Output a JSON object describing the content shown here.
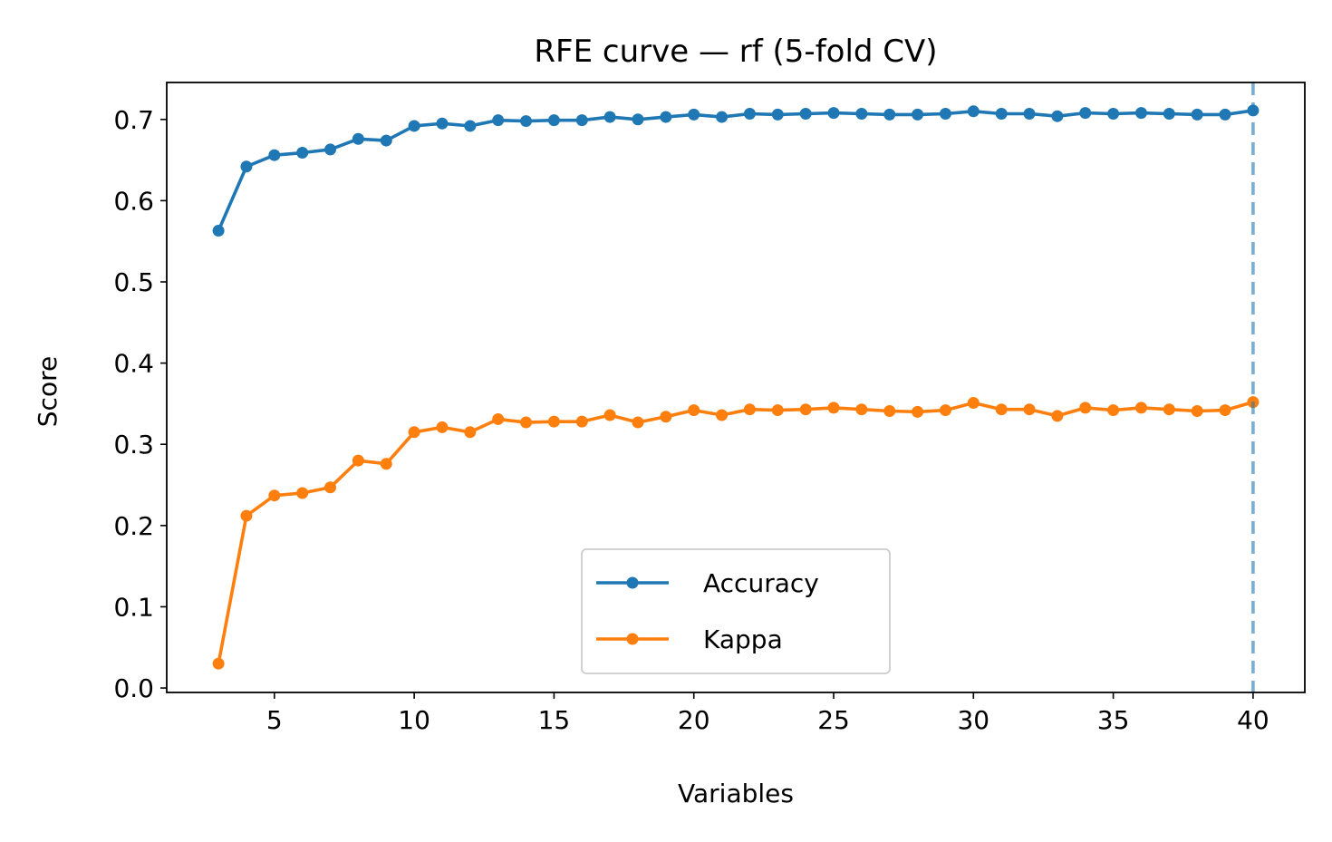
{
  "chart_data": {
    "type": "line",
    "title": "RFE curve — rf (5-fold CV)",
    "xlabel": "Variables",
    "ylabel": "Score",
    "xlim": [
      1.15,
      41.85
    ],
    "ylim": [
      -0.0055,
      0.7455
    ],
    "xticks": [
      5,
      10,
      15,
      20,
      25,
      30,
      35,
      40
    ],
    "yticks": [
      0.0,
      0.1,
      0.2,
      0.3,
      0.4,
      0.5,
      0.6,
      0.7
    ],
    "ytick_labels": [
      "0.0",
      "0.1",
      "0.2",
      "0.3",
      "0.4",
      "0.5",
      "0.6",
      "0.7"
    ],
    "grid": false,
    "legend_position": "lower center",
    "x": [
      3,
      4,
      5,
      6,
      7,
      8,
      9,
      10,
      11,
      12,
      13,
      14,
      15,
      16,
      17,
      18,
      19,
      20,
      21,
      22,
      23,
      24,
      25,
      26,
      27,
      28,
      29,
      30,
      31,
      32,
      33,
      34,
      35,
      36,
      37,
      38,
      39,
      40
    ],
    "series": [
      {
        "name": "Accuracy",
        "color": "#1f77b4",
        "values": [
          0.563,
          0.642,
          0.656,
          0.659,
          0.663,
          0.676,
          0.674,
          0.692,
          0.695,
          0.692,
          0.699,
          0.698,
          0.699,
          0.699,
          0.703,
          0.7,
          0.703,
          0.706,
          0.703,
          0.707,
          0.706,
          0.707,
          0.708,
          0.707,
          0.706,
          0.706,
          0.707,
          0.71,
          0.707,
          0.707,
          0.704,
          0.708,
          0.707,
          0.708,
          0.707,
          0.706,
          0.706,
          0.711
        ]
      },
      {
        "name": "Kappa",
        "color": "#ff7f0e",
        "values": [
          0.03,
          0.212,
          0.237,
          0.24,
          0.247,
          0.28,
          0.276,
          0.315,
          0.321,
          0.315,
          0.331,
          0.327,
          0.328,
          0.328,
          0.336,
          0.327,
          0.334,
          0.342,
          0.336,
          0.343,
          0.342,
          0.343,
          0.345,
          0.343,
          0.341,
          0.34,
          0.342,
          0.351,
          0.343,
          0.343,
          0.335,
          0.345,
          0.342,
          0.345,
          0.343,
          0.341,
          0.342,
          0.352
        ]
      }
    ],
    "vline": {
      "x": 40,
      "color": "#1f77b4",
      "style": "dashed"
    }
  }
}
